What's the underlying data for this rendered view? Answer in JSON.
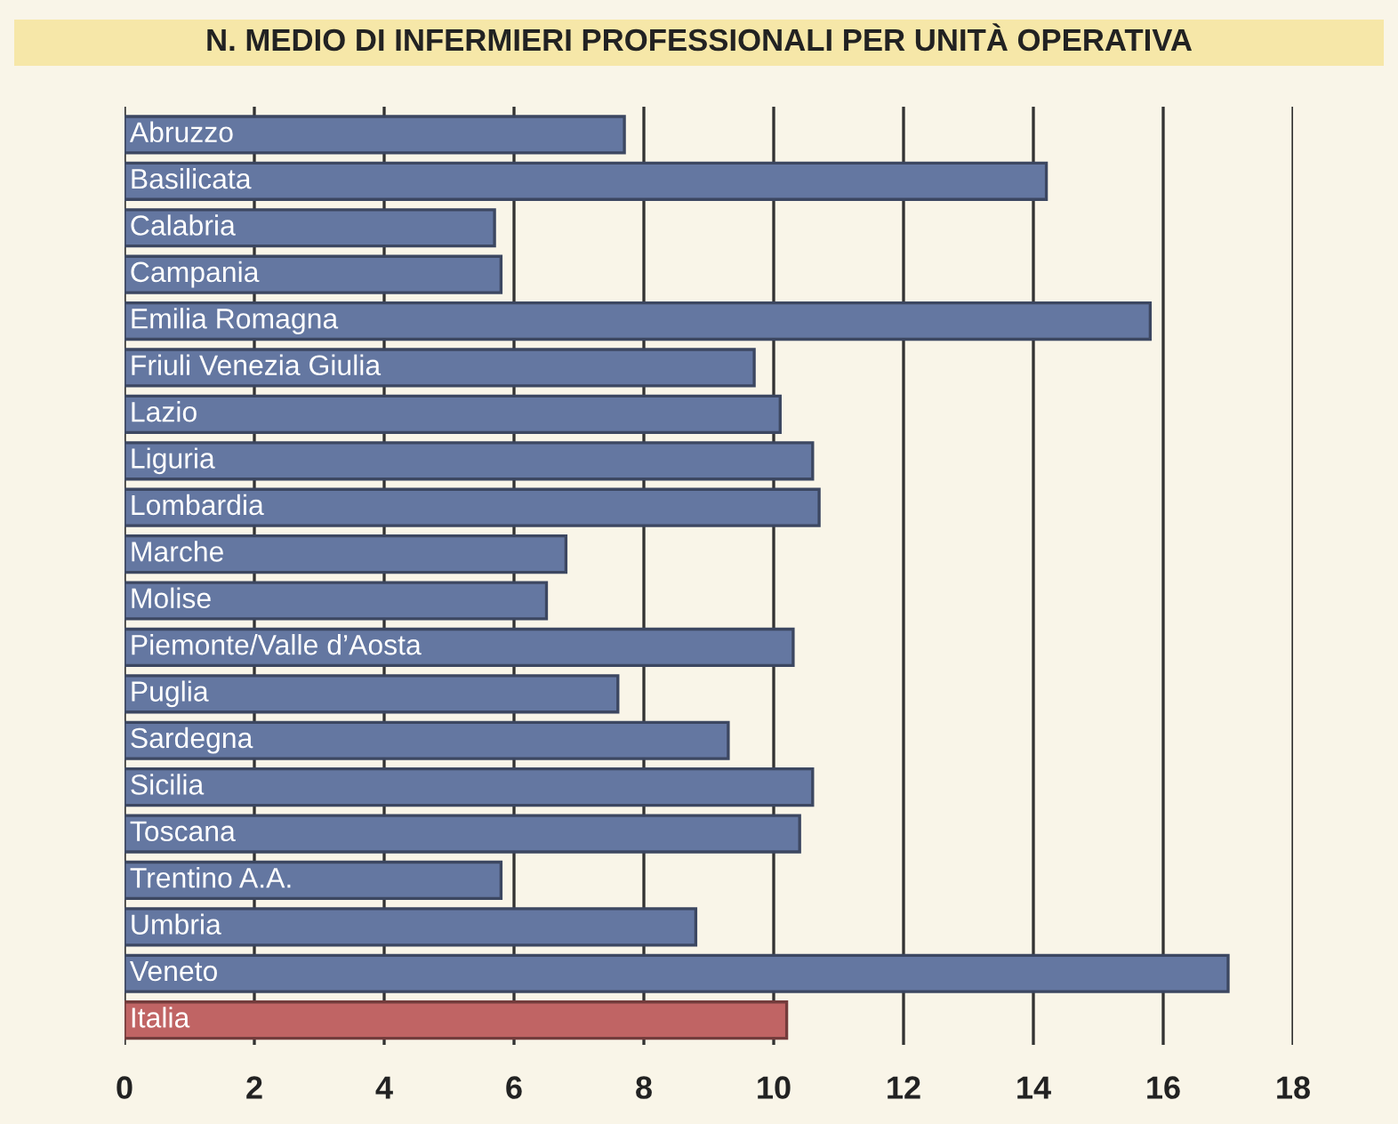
{
  "chart_data": {
    "type": "bar",
    "orientation": "horizontal",
    "title": "N. MEDIO DI INFERMIERI PROFESSIONALI PER UNITÀ OPERATIVA",
    "categories": [
      "Abruzzo",
      "Basilicata",
      "Calabria",
      "Campania",
      "Emilia Romagna",
      "Friuli Venezia Giulia",
      "Lazio",
      "Liguria",
      "Lombardia",
      "Marche",
      "Molise",
      "Piemonte/Valle d’Aosta",
      "Puglia",
      "Sardegna",
      "Sicilia",
      "Toscana",
      "Trentino A.A.",
      "Umbria",
      "Veneto",
      "Italia"
    ],
    "values": [
      7.7,
      14.2,
      5.7,
      5.8,
      15.8,
      9.7,
      10.1,
      10.6,
      10.7,
      6.8,
      6.5,
      10.3,
      7.6,
      9.3,
      10.6,
      10.4,
      5.8,
      8.8,
      17.0,
      10.2
    ],
    "colors": [
      "#6477a1",
      "#6477a1",
      "#6477a1",
      "#6477a1",
      "#6477a1",
      "#6477a1",
      "#6477a1",
      "#6477a1",
      "#6477a1",
      "#6477a1",
      "#6477a1",
      "#6477a1",
      "#6477a1",
      "#6477a1",
      "#6477a1",
      "#6477a1",
      "#6477a1",
      "#6477a1",
      "#6477a1",
      "#c06464"
    ],
    "xlim": [
      0,
      18
    ],
    "xticks": [
      0,
      2,
      4,
      6,
      8,
      10,
      12,
      14,
      16,
      18
    ],
    "grid": "x",
    "tick_labels": "x"
  }
}
